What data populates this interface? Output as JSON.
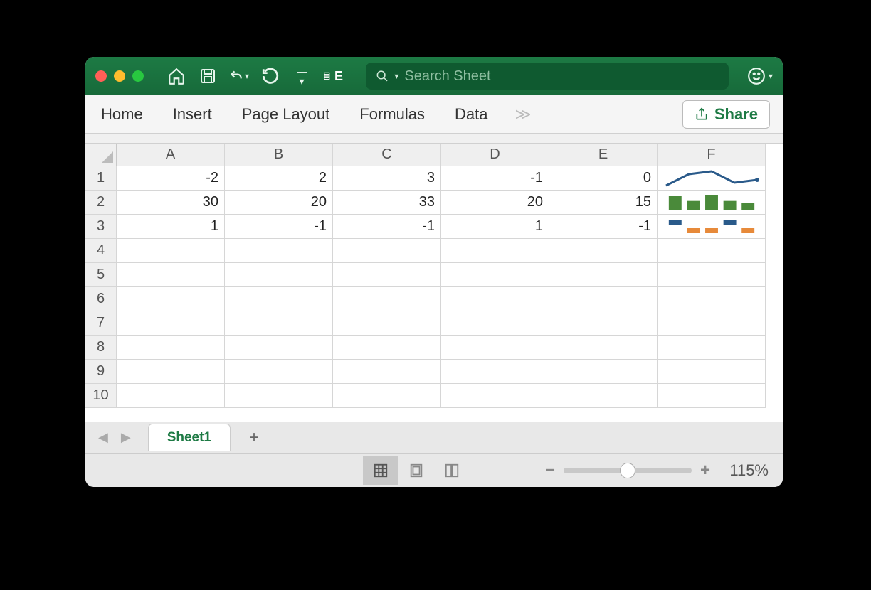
{
  "search": {
    "placeholder": "Search Sheet"
  },
  "ribbon": {
    "tabs": [
      "Home",
      "Insert",
      "Page Layout",
      "Formulas",
      "Data"
    ],
    "more_glyph": "≫",
    "share_label": "Share"
  },
  "columns": [
    "A",
    "B",
    "C",
    "D",
    "E",
    "F"
  ],
  "row_numbers": [
    1,
    2,
    3,
    4,
    5,
    6,
    7,
    8,
    9,
    10
  ],
  "cells": {
    "r1": {
      "A": "-2",
      "B": "2",
      "C": "3",
      "D": "-1",
      "E": "0"
    },
    "r2": {
      "A": "30",
      "B": "20",
      "C": "33",
      "D": "20",
      "E": "15"
    },
    "r3": {
      "A": "1",
      "B": "-1",
      "C": "-1",
      "D": "1",
      "E": "-1"
    }
  },
  "sparklines": {
    "r1": {
      "type": "line",
      "values": [
        -2,
        2,
        3,
        -1,
        0
      ],
      "color": "#2a5a8a",
      "line_width": 3,
      "marker_last": true
    },
    "r2": {
      "type": "column",
      "values": [
        30,
        20,
        33,
        20,
        15
      ],
      "bar_color": "#4a8a3a",
      "baseline": 0
    },
    "r3": {
      "type": "winloss",
      "values": [
        1,
        -1,
        -1,
        1,
        -1
      ],
      "pos_color": "#2a5a8a",
      "neg_color": "#e78a3a"
    }
  },
  "sheettab": {
    "name": "Sheet1"
  },
  "status": {
    "zoom_pct": "115%",
    "slider_pos": 0.5
  },
  "colors": {
    "titlebar_bg": "#1d7a44",
    "titlebar_bg2": "#176a3a",
    "search_bg": "#0f5a30",
    "accent": "#1d7a44",
    "grid_border": "#d6d6d6",
    "header_bg": "#efefef"
  }
}
